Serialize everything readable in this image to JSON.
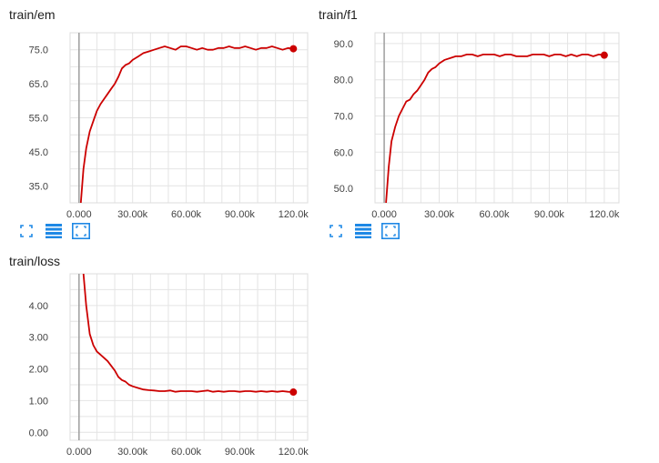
{
  "colors": {
    "line": "#cc0000",
    "grid": "#e4e4e4",
    "axis": "#9e9e9e",
    "icon": "#1e88e5"
  },
  "toolbar_icons": [
    "fit-domain-icon",
    "toggle-log-scale-icon",
    "expand-chart-icon"
  ],
  "chart_data": [
    {
      "type": "line",
      "title": "train/em",
      "xlabel": "",
      "ylabel": "",
      "xlim": [
        -5000,
        128000
      ],
      "ylim": [
        30,
        80
      ],
      "xticks": [
        0,
        30000,
        60000,
        90000,
        120000
      ],
      "xtick_labels": [
        "0.000",
        "30.00k",
        "60.00k",
        "90.00k",
        "120.0k"
      ],
      "yticks": [
        35,
        45,
        55,
        65,
        75
      ],
      "ytick_labels": [
        "35.0",
        "45.0",
        "55.0",
        "65.0",
        "75.0"
      ],
      "grid": true,
      "series": [
        {
          "x": [
            1000,
            2500,
            4000,
            6000,
            8000,
            10000,
            12000,
            14000,
            16000,
            18000,
            20000,
            22000,
            24000,
            26000,
            28000,
            30000,
            33000,
            36000,
            39000,
            42000,
            45000,
            48000,
            51000,
            54000,
            57000,
            60000,
            63000,
            66000,
            69000,
            72000,
            75000,
            78000,
            81000,
            84000,
            87000,
            90000,
            93000,
            96000,
            99000,
            102000,
            105000,
            108000,
            111000,
            114000,
            117000,
            120000
          ],
          "y": [
            30,
            40,
            46,
            51,
            54,
            57,
            59,
            60.5,
            62,
            63.5,
            65,
            67,
            69.5,
            70.5,
            71,
            72,
            73,
            74,
            74.5,
            75,
            75.5,
            76,
            75.5,
            75,
            76,
            76,
            75.5,
            75,
            75.5,
            75,
            75,
            75.5,
            75.5,
            76,
            75.5,
            75.5,
            76,
            75.5,
            75,
            75.5,
            75.5,
            76,
            75.5,
            75,
            75.5,
            75.3
          ]
        }
      ]
    },
    {
      "type": "line",
      "title": "train/f1",
      "xlabel": "",
      "ylabel": "",
      "xlim": [
        -5000,
        128000
      ],
      "ylim": [
        46,
        93
      ],
      "xticks": [
        0,
        30000,
        60000,
        90000,
        120000
      ],
      "xtick_labels": [
        "0.000",
        "30.00k",
        "60.00k",
        "90.00k",
        "120.0k"
      ],
      "yticks": [
        50,
        60,
        70,
        80,
        90
      ],
      "ytick_labels": [
        "50.0",
        "60.0",
        "70.0",
        "80.0",
        "90.0"
      ],
      "grid": true,
      "series": [
        {
          "x": [
            1000,
            2500,
            4000,
            6000,
            8000,
            10000,
            12000,
            14000,
            16000,
            18000,
            20000,
            22000,
            24000,
            26000,
            28000,
            30000,
            33000,
            36000,
            39000,
            42000,
            45000,
            48000,
            51000,
            54000,
            57000,
            60000,
            63000,
            66000,
            69000,
            72000,
            75000,
            78000,
            81000,
            84000,
            87000,
            90000,
            93000,
            96000,
            99000,
            102000,
            105000,
            108000,
            111000,
            114000,
            117000,
            120000
          ],
          "y": [
            46,
            56,
            63,
            67,
            70,
            72,
            74,
            74.5,
            76,
            77,
            78.5,
            80,
            82,
            83,
            83.5,
            84.5,
            85.5,
            86,
            86.5,
            86.5,
            87,
            87,
            86.5,
            87,
            87,
            87,
            86.5,
            87,
            87,
            86.5,
            86.5,
            86.5,
            87,
            87,
            87,
            86.5,
            87,
            87,
            86.5,
            87,
            86.5,
            87,
            87,
            86.5,
            87,
            86.8
          ]
        }
      ]
    },
    {
      "type": "line",
      "title": "train/loss",
      "xlabel": "",
      "ylabel": "",
      "xlim": [
        -5000,
        128000
      ],
      "ylim": [
        -0.25,
        5.0
      ],
      "xticks": [
        0,
        30000,
        60000,
        90000,
        120000
      ],
      "xtick_labels": [
        "0.000",
        "30.00k",
        "60.00k",
        "90.00k",
        "120.0k"
      ],
      "yticks": [
        0,
        1,
        2,
        3,
        4
      ],
      "ytick_labels": [
        "0.00",
        "1.00",
        "2.00",
        "3.00",
        "4.00"
      ],
      "grid": true,
      "series": [
        {
          "x": [
            2500,
            4000,
            6000,
            8000,
            10000,
            12000,
            14000,
            16000,
            18000,
            20000,
            22000,
            24000,
            26000,
            28000,
            30000,
            33000,
            36000,
            39000,
            42000,
            45000,
            48000,
            51000,
            54000,
            57000,
            60000,
            63000,
            66000,
            69000,
            72000,
            75000,
            78000,
            81000,
            84000,
            87000,
            90000,
            93000,
            96000,
            99000,
            102000,
            105000,
            108000,
            111000,
            114000,
            117000,
            120000
          ],
          "y": [
            5.0,
            4.0,
            3.1,
            2.75,
            2.55,
            2.45,
            2.35,
            2.25,
            2.1,
            1.95,
            1.75,
            1.65,
            1.6,
            1.5,
            1.45,
            1.4,
            1.35,
            1.33,
            1.32,
            1.3,
            1.3,
            1.32,
            1.28,
            1.3,
            1.3,
            1.3,
            1.28,
            1.3,
            1.32,
            1.28,
            1.3,
            1.28,
            1.3,
            1.3,
            1.28,
            1.3,
            1.3,
            1.28,
            1.3,
            1.28,
            1.3,
            1.28,
            1.3,
            1.28,
            1.27
          ]
        }
      ]
    }
  ]
}
